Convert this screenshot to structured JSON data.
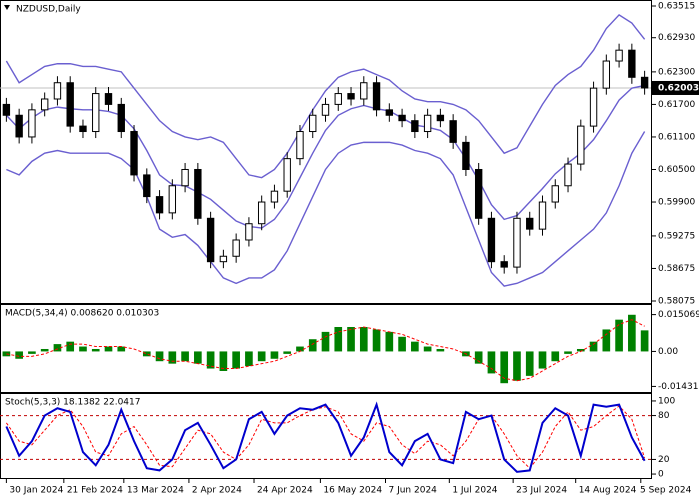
{
  "chart_data": [
    {
      "type": "candlestick",
      "title": "NZDUSD,Daily",
      "xlim": [
        -0.5,
        50.5
      ],
      "ylim": [
        0.58038,
        0.63607
      ],
      "yticks": [
        0.63515,
        {
          "value": 0.6293,
          "label": "0.62930"
        },
        {
          "value": 0.623,
          "label": "0.62300"
        },
        {
          "value": 0.617,
          "label": "0.61700"
        },
        {
          "value": 0.611,
          "label": "0.61100"
        },
        {
          "value": 0.605,
          "label": "0.60500"
        },
        {
          "value": 0.599,
          "label": "0.59900"
        },
        0.59275,
        0.58675,
        0.58075
      ],
      "last_price": 0.62003,
      "candle_color": "#000000",
      "band_color": "#6a5fd0",
      "open": [
        0.617,
        0.615,
        0.611,
        0.616,
        0.618,
        0.621,
        0.613,
        0.612,
        0.619,
        0.617,
        0.612,
        0.604,
        0.6,
        0.597,
        0.602,
        0.605,
        0.596,
        0.588,
        0.589,
        0.592,
        0.595,
        0.599,
        0.601,
        0.607,
        0.612,
        0.615,
        0.617,
        0.619,
        0.618,
        0.621,
        0.616,
        0.615,
        0.614,
        0.612,
        0.615,
        0.614,
        0.61,
        0.605,
        0.596,
        0.588,
        0.587,
        0.596,
        0.594,
        0.599,
        0.602,
        0.606,
        0.613,
        0.62,
        0.625,
        0.627,
        0.622
      ],
      "high": [
        0.6182,
        0.6162,
        0.6172,
        0.6192,
        0.6222,
        0.6222,
        0.6142,
        0.6202,
        0.6202,
        0.6182,
        0.6132,
        0.6052,
        0.6012,
        0.6032,
        0.6062,
        0.6062,
        0.5972,
        0.5902,
        0.5932,
        0.5962,
        0.6002,
        0.6022,
        0.6082,
        0.6132,
        0.6162,
        0.6182,
        0.6202,
        0.6202,
        0.6222,
        0.6222,
        0.6172,
        0.6162,
        0.6152,
        0.6162,
        0.6162,
        0.6152,
        0.6112,
        0.6062,
        0.5972,
        0.5892,
        0.5972,
        0.5972,
        0.6002,
        0.6032,
        0.6072,
        0.6142,
        0.6212,
        0.6262,
        0.6282,
        0.6282,
        0.6232
      ],
      "low": [
        0.6138,
        0.6098,
        0.6098,
        0.6148,
        0.6168,
        0.6118,
        0.6108,
        0.6108,
        0.6158,
        0.6108,
        0.6028,
        0.5988,
        0.5958,
        0.5958,
        0.6008,
        0.5948,
        0.5868,
        0.5868,
        0.5878,
        0.5908,
        0.5938,
        0.5978,
        0.5998,
        0.6058,
        0.6108,
        0.6138,
        0.6158,
        0.6168,
        0.6168,
        0.6148,
        0.6138,
        0.6128,
        0.6108,
        0.6108,
        0.6128,
        0.6088,
        0.6038,
        0.5948,
        0.5868,
        0.5858,
        0.5858,
        0.5928,
        0.5928,
        0.5978,
        0.6008,
        0.6048,
        0.6118,
        0.6188,
        0.6238,
        0.6208,
        0.6188
      ],
      "close": [
        0.615,
        0.611,
        0.616,
        0.618,
        0.621,
        0.613,
        0.612,
        0.619,
        0.617,
        0.612,
        0.604,
        0.6,
        0.597,
        0.602,
        0.605,
        0.596,
        0.588,
        0.589,
        0.592,
        0.595,
        0.599,
        0.601,
        0.607,
        0.612,
        0.615,
        0.617,
        0.619,
        0.618,
        0.621,
        0.616,
        0.615,
        0.614,
        0.612,
        0.615,
        0.614,
        0.61,
        0.605,
        0.596,
        0.588,
        0.587,
        0.596,
        0.594,
        0.599,
        0.602,
        0.606,
        0.613,
        0.62,
        0.625,
        0.627,
        0.622,
        0.62003
      ],
      "upper_band": [
        0.625,
        0.621,
        0.6225,
        0.624,
        0.6245,
        0.6245,
        0.624,
        0.624,
        0.6235,
        0.623,
        0.62,
        0.617,
        0.614,
        0.612,
        0.611,
        0.6105,
        0.611,
        0.61,
        0.607,
        0.604,
        0.6035,
        0.605,
        0.608,
        0.612,
        0.616,
        0.6195,
        0.622,
        0.623,
        0.6235,
        0.6225,
        0.6215,
        0.6195,
        0.618,
        0.6175,
        0.6175,
        0.617,
        0.616,
        0.614,
        0.611,
        0.608,
        0.609,
        0.613,
        0.617,
        0.6205,
        0.6225,
        0.624,
        0.627,
        0.631,
        0.6335,
        0.632,
        0.629
      ],
      "middle_band": [
        0.615,
        0.6125,
        0.6145,
        0.616,
        0.6165,
        0.6162,
        0.616,
        0.616,
        0.6157,
        0.615,
        0.6125,
        0.6085,
        0.604,
        0.6022,
        0.602,
        0.6008,
        0.5995,
        0.5975,
        0.5955,
        0.5945,
        0.5942,
        0.5958,
        0.599,
        0.6035,
        0.608,
        0.6122,
        0.615,
        0.6162,
        0.6168,
        0.6162,
        0.6158,
        0.6145,
        0.6132,
        0.6128,
        0.6122,
        0.6105,
        0.607,
        0.603,
        0.5985,
        0.5958,
        0.5965,
        0.599,
        0.6015,
        0.6042,
        0.6062,
        0.608,
        0.6105,
        0.614,
        0.6178,
        0.62,
        0.6205
      ],
      "lower_band": [
        0.605,
        0.604,
        0.6065,
        0.608,
        0.6085,
        0.608,
        0.608,
        0.608,
        0.608,
        0.607,
        0.605,
        0.6,
        0.594,
        0.5925,
        0.593,
        0.591,
        0.588,
        0.585,
        0.584,
        0.585,
        0.585,
        0.5865,
        0.59,
        0.595,
        0.6,
        0.605,
        0.608,
        0.6095,
        0.61,
        0.61,
        0.61,
        0.6095,
        0.6085,
        0.608,
        0.607,
        0.604,
        0.598,
        0.592,
        0.586,
        0.5835,
        0.584,
        0.585,
        0.586,
        0.588,
        0.59,
        0.592,
        0.594,
        0.597,
        0.602,
        0.608,
        0.612
      ]
    },
    {
      "type": "macd",
      "title": "MACD(5,34,4) 0.008620 0.010303",
      "xlim": [
        -0.5,
        50.5
      ],
      "ylim": [
        -0.0166,
        0.019
      ],
      "yticks": [
        0.015069,
        {
          "value": 0,
          "label": "0.00"
        },
        -0.014318
      ],
      "histogram_color": "#008000",
      "signal_color": "#ff0000",
      "histogram": [
        -0.002,
        -0.003,
        -0.001,
        0.001,
        0.003,
        0.004,
        0.002,
        0.001,
        0.002,
        0.002,
        0.0,
        -0.002,
        -0.004,
        -0.005,
        -0.004,
        -0.005,
        -0.007,
        -0.008,
        -0.007,
        -0.006,
        -0.004,
        -0.003,
        -0.001,
        0.002,
        0.005,
        0.008,
        0.01,
        0.01,
        0.01,
        0.009,
        0.008,
        0.006,
        0.004,
        0.002,
        0.001,
        0.0,
        -0.002,
        -0.005,
        -0.009,
        -0.013,
        -0.012,
        -0.01,
        -0.007,
        -0.004,
        -0.001,
        0.001,
        0.004,
        0.009,
        0.013,
        0.015,
        0.00862
      ],
      "signal": [
        -0.001,
        -0.002,
        -0.002,
        -0.001,
        0.001,
        0.003,
        0.003,
        0.002,
        0.002,
        0.002,
        0.001,
        -0.001,
        -0.003,
        -0.004,
        -0.004,
        -0.005,
        -0.006,
        -0.007,
        -0.007,
        -0.006,
        -0.005,
        -0.004,
        -0.002,
        0.0,
        0.003,
        0.006,
        0.008,
        0.009,
        0.01,
        0.009,
        0.008,
        0.007,
        0.005,
        0.003,
        0.002,
        0.001,
        -0.001,
        -0.004,
        -0.007,
        -0.011,
        -0.012,
        -0.011,
        -0.008,
        -0.005,
        -0.002,
        0.0,
        0.003,
        0.007,
        0.011,
        0.013,
        0.010303
      ]
    },
    {
      "type": "stochastic",
      "title": "Stoch(5,3,3) 18.1382 22.0417",
      "xlim": [
        -0.5,
        50.5
      ],
      "ylim": [
        -5.4,
        109.5
      ],
      "yticks": [
        100,
        80,
        20,
        0
      ],
      "levels": [
        80,
        20
      ],
      "main_color": "#0000cd",
      "signal_color": "#ff0000",
      "level_color": "#c00000",
      "main": [
        65,
        25,
        45,
        80,
        90,
        85,
        30,
        12,
        40,
        88,
        45,
        8,
        5,
        20,
        60,
        70,
        40,
        8,
        20,
        75,
        85,
        55,
        80,
        90,
        88,
        95,
        70,
        25,
        50,
        95,
        30,
        12,
        45,
        55,
        20,
        15,
        85,
        75,
        80,
        20,
        3,
        5,
        70,
        90,
        80,
        25,
        95,
        92,
        95,
        50,
        18.1382
      ],
      "signal": [
        70,
        45,
        40,
        60,
        80,
        88,
        65,
        30,
        25,
        55,
        65,
        40,
        12,
        10,
        35,
        60,
        55,
        30,
        20,
        40,
        75,
        70,
        70,
        80,
        88,
        92,
        85,
        55,
        45,
        70,
        65,
        40,
        28,
        45,
        40,
        25,
        45,
        75,
        80,
        55,
        25,
        8,
        30,
        65,
        85,
        60,
        65,
        80,
        93,
        75,
        22.0417
      ],
      "xticks": [
        {
          "value": 0,
          "label": "30 Jan 2024"
        },
        {
          "value": 4.5,
          "label": "21 Feb 2024"
        },
        {
          "value": 9.2,
          "label": "13 Mar 2024"
        },
        {
          "value": 14.3,
          "label": "2 Apr 2024"
        },
        {
          "value": 19.4,
          "label": "24 Apr 2024"
        },
        {
          "value": 24.6,
          "label": "16 May 2024"
        },
        {
          "value": 29.7,
          "label": "7 Jun 2024"
        },
        {
          "value": 34.7,
          "label": "1 Jul 2024"
        },
        {
          "value": 39.7,
          "label": "23 Jul 2024"
        },
        {
          "value": 44.6,
          "label": "14 Aug 2024"
        },
        {
          "value": 49.7,
          "label": "5 Sep 2024"
        }
      ]
    }
  ]
}
